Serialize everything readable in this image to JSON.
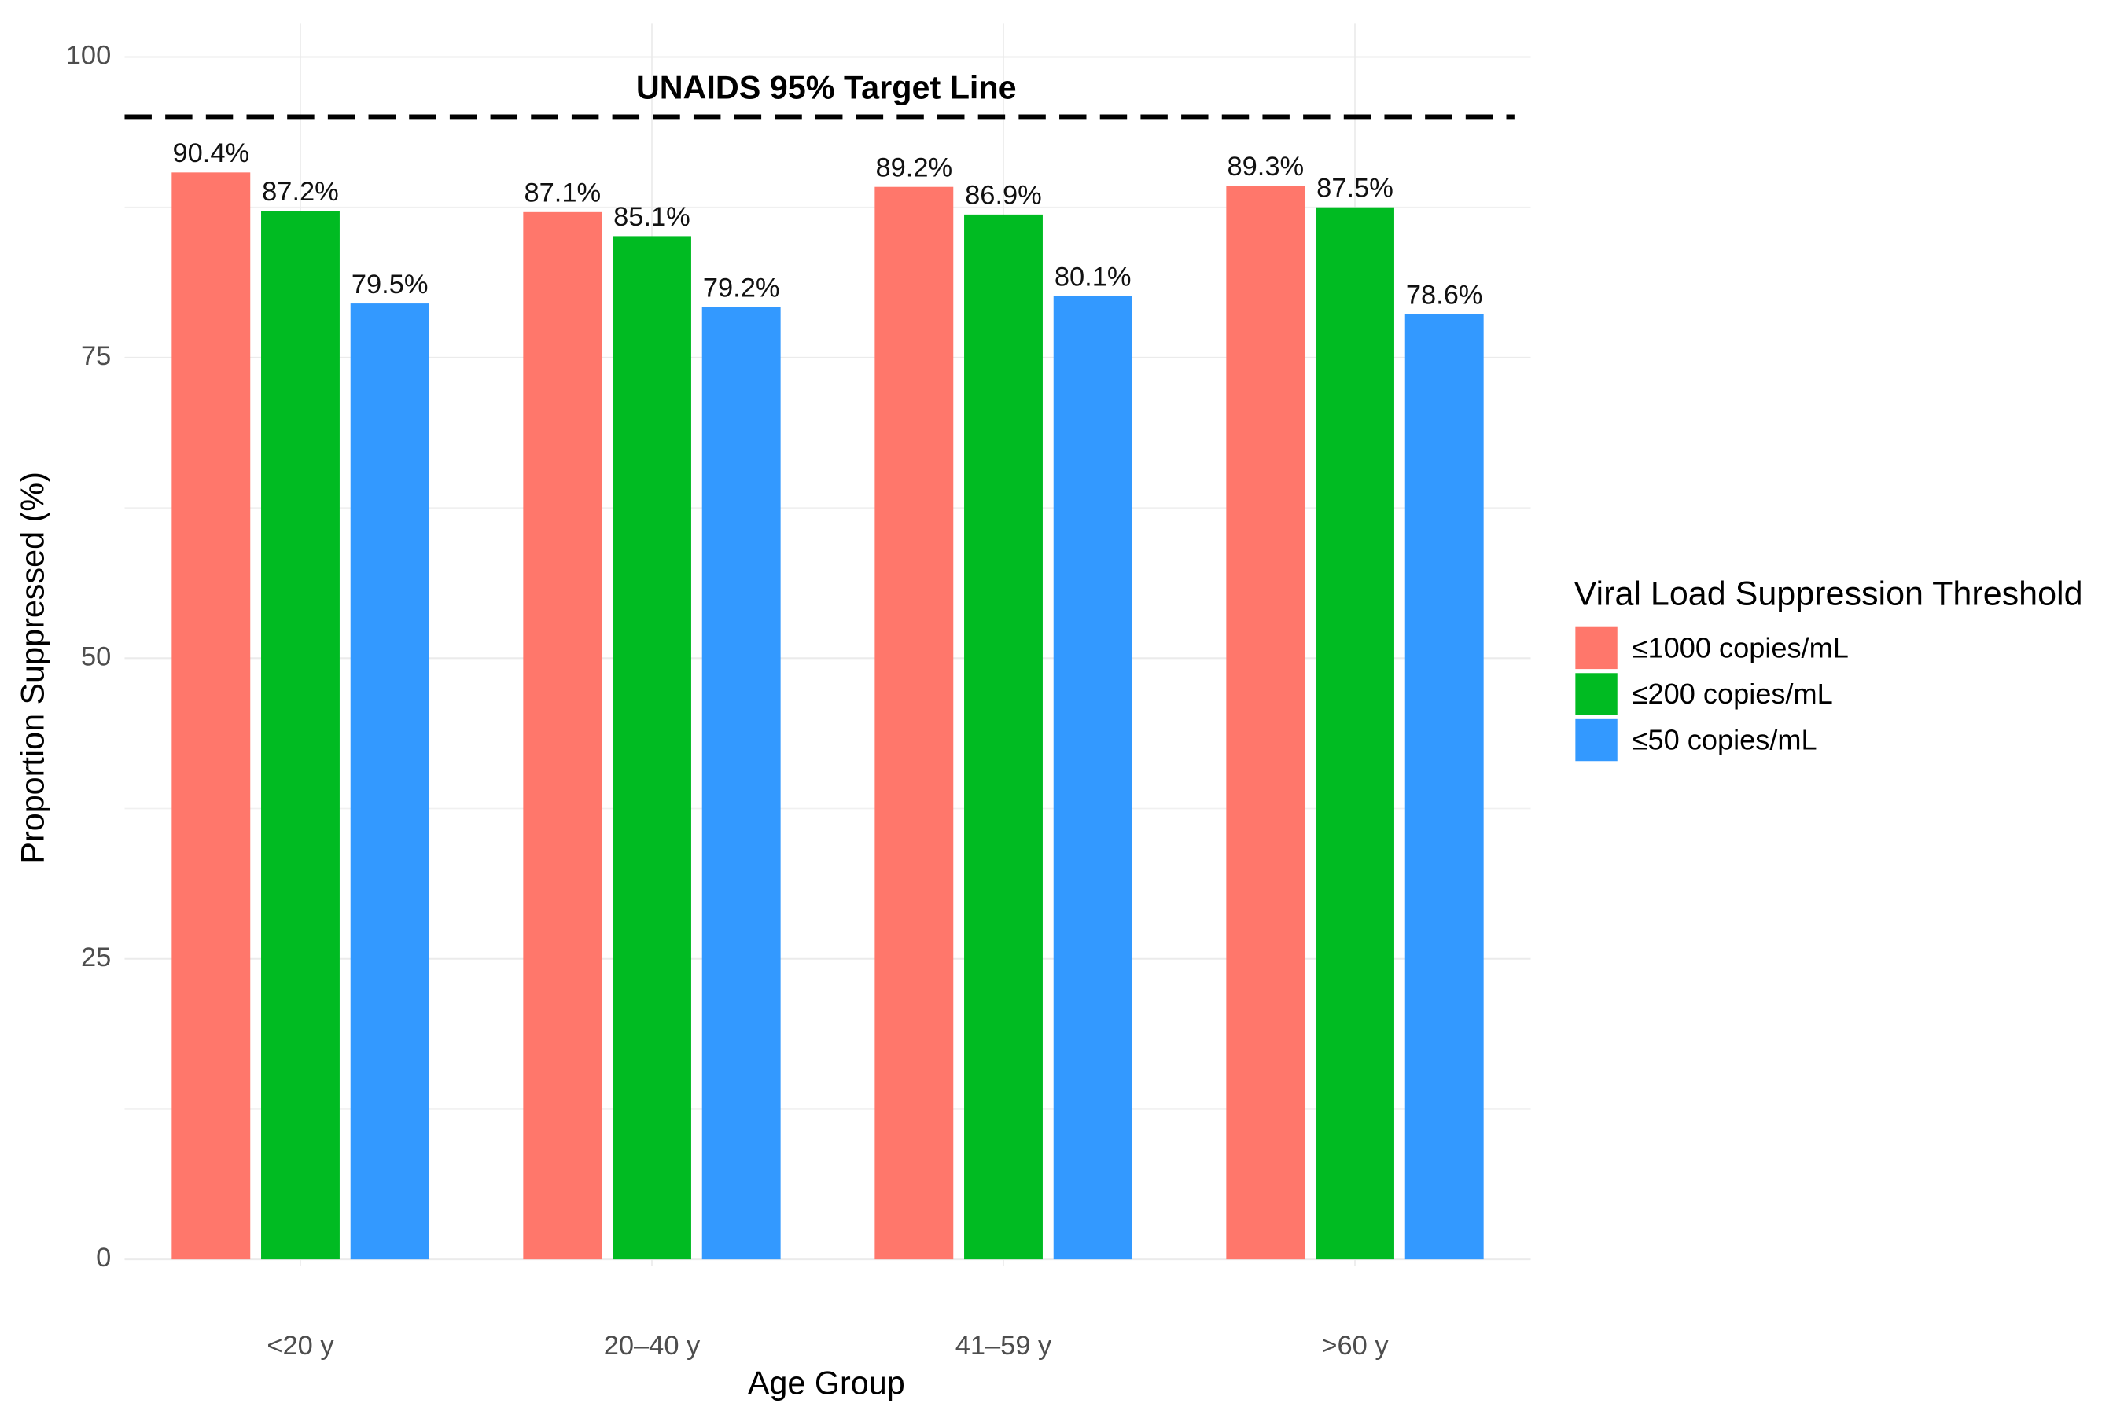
{
  "chart_data": {
    "type": "bar",
    "x_label": "Age Group",
    "y_label": "Proportion Suppressed (%)",
    "categories": [
      "<20 y",
      "20–40 y",
      "41–59 y",
      ">60 y"
    ],
    "series": [
      {
        "name": "≤1000 copies/mL",
        "color": "#ff776b",
        "values": [
          90.4,
          87.1,
          89.2,
          89.3
        ],
        "value_labels": [
          "90.4%",
          "87.1%",
          "89.2%",
          "89.3%"
        ]
      },
      {
        "name": "≤200 copies/mL",
        "color": "#00bb22",
        "values": [
          87.2,
          85.1,
          86.9,
          87.5
        ],
        "value_labels": [
          "87.2%",
          "85.1%",
          "86.9%",
          "87.5%"
        ]
      },
      {
        "name": "≤50 copies/mL",
        "color": "#3399ff",
        "values": [
          79.5,
          79.2,
          80.1,
          78.6
        ],
        "value_labels": [
          "79.5%",
          "79.2%",
          "80.1%",
          "78.6%"
        ]
      }
    ],
    "legend_title": "Viral Load Suppression Threshold",
    "legend_position": "right",
    "ylim": [
      0,
      100
    ],
    "yticks": [
      0,
      25,
      50,
      75,
      100
    ],
    "minor_yticks": [
      12.5,
      37.5,
      62.5,
      87.5
    ],
    "grid": true,
    "target_line": {
      "value": 95,
      "label": "UNAIDS 95% Target Line"
    }
  }
}
